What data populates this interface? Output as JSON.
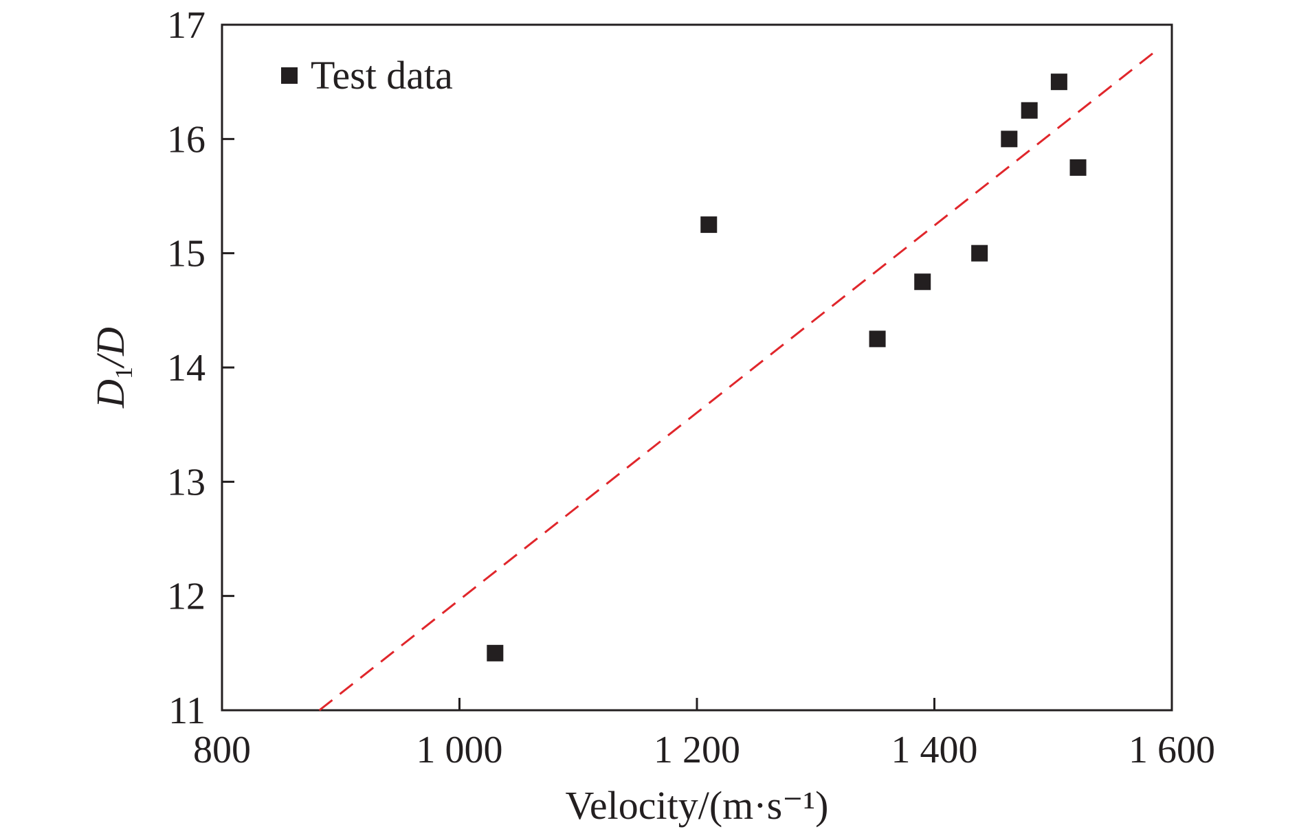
{
  "chart_data": {
    "type": "scatter",
    "title": "",
    "xlabel": "Velocity/(m·s⁻¹)",
    "ylabel": "D1/D",
    "ylabel_parts": {
      "main": "D",
      "sub": "1",
      "rest": "/D"
    },
    "xlim": [
      800,
      1600
    ],
    "ylim": [
      11,
      17
    ],
    "x_ticks": [
      800,
      1000,
      1200,
      1400,
      1600
    ],
    "x_tick_labels": [
      "800",
      "1 000",
      "1 200",
      "1 400",
      "1 600"
    ],
    "y_ticks": [
      11,
      12,
      13,
      14,
      15,
      16,
      17
    ],
    "y_tick_labels": [
      "11",
      "12",
      "13",
      "14",
      "15",
      "16",
      "17"
    ],
    "grid": false,
    "legend": {
      "position": "top-left",
      "entries": [
        "Test data"
      ]
    },
    "series": [
      {
        "name": "Test data",
        "marker": "square",
        "color": "#231f20",
        "points": [
          {
            "x": 1030,
            "y": 11.5
          },
          {
            "x": 1210,
            "y": 15.25
          },
          {
            "x": 1352,
            "y": 14.25
          },
          {
            "x": 1390,
            "y": 14.75
          },
          {
            "x": 1438,
            "y": 15.0
          },
          {
            "x": 1463,
            "y": 16.0
          },
          {
            "x": 1480,
            "y": 16.25
          },
          {
            "x": 1505,
            "y": 16.5
          },
          {
            "x": 1521,
            "y": 15.75
          }
        ]
      },
      {
        "marker": "dashed-line",
        "color": "#e0262b",
        "points": [
          {
            "x": 882,
            "y": 11.0
          },
          {
            "x": 1584,
            "y": 16.75
          }
        ]
      }
    ]
  }
}
